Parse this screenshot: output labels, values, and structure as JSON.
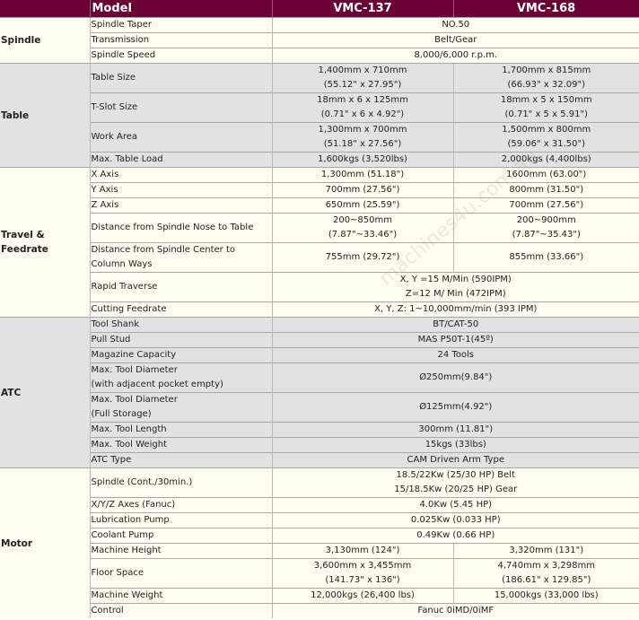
{
  "header": {
    "model": "Model",
    "col1": "VMC-137",
    "col2": "VMC-168"
  },
  "colors": {
    "header_bg": "#6a0036",
    "cream": "#fffdf0",
    "gray": "#e2e2e2"
  },
  "watermark": "machines4u.com.au",
  "groups": [
    {
      "name": "Spindle",
      "shade": "cream",
      "rows": [
        {
          "label": [
            "Spindle Taper"
          ],
          "span": [
            "NO.50"
          ]
        },
        {
          "label": [
            "Transmission"
          ],
          "span": [
            "Belt/Gear"
          ]
        },
        {
          "label": [
            "Spindle Speed"
          ],
          "span": [
            "8,000/6,000 r.p.m."
          ]
        }
      ]
    },
    {
      "name": "Table",
      "shade": "gray",
      "rows": [
        {
          "label": [
            "Table Size"
          ],
          "v1": [
            "1,400mm x 710mm",
            "(55.12\" x 27.95\")"
          ],
          "v2": [
            "1,700mm x 815mm",
            "(66.93\" x 32.09\")"
          ]
        },
        {
          "label": [
            "T-Slot Size"
          ],
          "v1": [
            "18mm x 6 x 125mm",
            "(0.71\" x 6 x 4.92\")"
          ],
          "v2": [
            "18mm x 5 x 150mm",
            "(0.71\" x 5 x 5.91\")"
          ]
        },
        {
          "label": [
            "Work Area"
          ],
          "v1": [
            "1,300mm x 700mm",
            "(51.18\" x 27.56\")"
          ],
          "v2": [
            "1,500mm x 800mm",
            "(59.06\" x 31.50\")"
          ]
        },
        {
          "label": [
            "Max. Table Load"
          ],
          "v1": [
            "1,600kgs (3,520lbs)"
          ],
          "v2": [
            "2,000kgs (4,400lbs)"
          ]
        }
      ]
    },
    {
      "name": "Travel & Feedrate",
      "shade": "cream",
      "rows": [
        {
          "label": [
            "X Axis"
          ],
          "v1": [
            "1,300mm (51.18\")"
          ],
          "v2": [
            "1600mm (63.00\")"
          ]
        },
        {
          "label": [
            "Y Axis"
          ],
          "v1": [
            "700mm (27.56\")"
          ],
          "v2": [
            "800mm (31.50\")"
          ]
        },
        {
          "label": [
            "Z Axis"
          ],
          "v1": [
            "650mm (25.59\")"
          ],
          "v2": [
            "700mm (27.56\")"
          ]
        },
        {
          "label": [
            "Distance from Spindle Nose to Table"
          ],
          "v1": [
            "200~850mm",
            "(7.87\"~33.46\")"
          ],
          "v2": [
            "200~900mm",
            "(7.87\"~35.43\")"
          ],
          "tall": true
        },
        {
          "label": [
            "Distance from Spindle Center to",
            "Column Ways"
          ],
          "v1": [
            "755mm (29.72\")"
          ],
          "v2": [
            "855mm (33.66\")"
          ]
        },
        {
          "label": [
            "Rapid Traverse"
          ],
          "span": [
            "X, Y =15 M/Min (590IPM)",
            "Z=12 M/ Min (472IPM)"
          ]
        },
        {
          "label": [
            "Cutting Feedrate"
          ],
          "span": [
            "X, Y, Z: 1~10,000mm/min (393 IPM)"
          ]
        }
      ]
    },
    {
      "name": "ATC",
      "shade": "gray",
      "rows": [
        {
          "label": [
            "Tool Shank"
          ],
          "span": [
            "BT/CAT-50"
          ]
        },
        {
          "label": [
            "Pull Stud"
          ],
          "span": [
            "MAS P50T-1(45º)"
          ]
        },
        {
          "label": [
            "Magazine Capacity"
          ],
          "span": [
            "24 Tools"
          ]
        },
        {
          "label": [
            "Max. Tool Diameter",
            "(with adjacent pocket empty)"
          ],
          "span": [
            "Ø250mm(9.84\")"
          ]
        },
        {
          "label": [
            "Max. Tool Diameter",
            "(Full Storage)"
          ],
          "span": [
            "Ø125mm(4.92\")"
          ]
        },
        {
          "label": [
            "Max. Tool Length"
          ],
          "span": [
            "300mm (11.81\")"
          ]
        },
        {
          "label": [
            "Max. Tool Weight"
          ],
          "span": [
            "15kgs (33lbs)"
          ]
        },
        {
          "label": [
            "ATC Type"
          ],
          "span": [
            "CAM Driven Arm Type"
          ]
        }
      ]
    },
    {
      "name": "Motor",
      "shade": "cream",
      "rows": [
        {
          "label": [
            "Spindle (Cont./30min.)"
          ],
          "span": [
            "18.5/22Kw (25/30 HP) Belt",
            "15/18.5Kw (20/25 HP) Gear"
          ]
        },
        {
          "label": [
            "X/Y/Z Axes (Fanuc)"
          ],
          "span": [
            "4.0Kw (5.45 HP)"
          ]
        },
        {
          "label": [
            "Lubrication Pump"
          ],
          "span": [
            "0.025Kw (0.033 HP)"
          ]
        },
        {
          "label": [
            "Coolant Pump"
          ],
          "span": [
            "0.49Kw (0.66 HP)"
          ]
        },
        {
          "label": [
            "Machine Height"
          ],
          "v1": [
            "3,130mm (124\")"
          ],
          "v2": [
            "3,320mm (131\")"
          ]
        },
        {
          "label": [
            "Floor Space"
          ],
          "v1": [
            "3,600mm x 3,455mm",
            "(141.73\" x 136\")"
          ],
          "v2": [
            "4,740mm x 3,298mm",
            "(186.61\" x 129.85\")"
          ]
        },
        {
          "label": [
            "Machine Weight"
          ],
          "v1": [
            "12,000kgs (26,400 lbs)"
          ],
          "v2": [
            "15,000kgs (33,000 lbs)"
          ]
        },
        {
          "label": [
            "Control"
          ],
          "span": [
            "Fanuc 0iMD/0iMF"
          ]
        }
      ]
    }
  ]
}
